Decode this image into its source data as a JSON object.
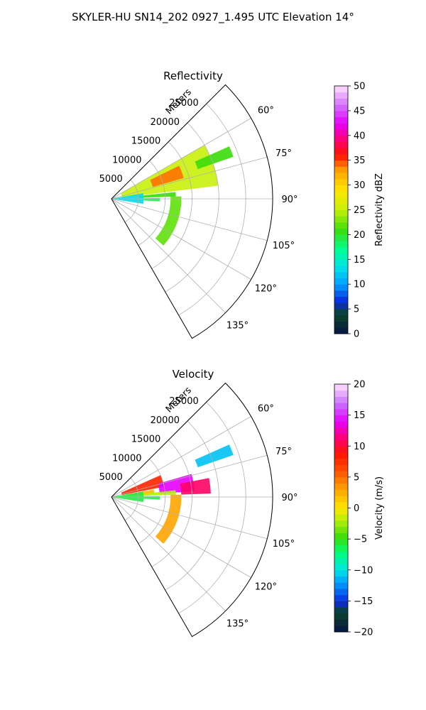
{
  "figure": {
    "title": "SKYLER-HU  SN14_202  0927_1.495 UTC Elevation 14°"
  },
  "chart_data": [
    {
      "type": "heatmap",
      "projection": "polar sector",
      "title": "Reflectivity",
      "radial_label": "Meters",
      "radial_ticks": [
        "5000",
        "10000",
        "15000",
        "20000",
        "25000"
      ],
      "radial_range": [
        0,
        30000
      ],
      "azimuth_range_deg": [
        45,
        150
      ],
      "azimuth_ticks": [
        "60°",
        "75°",
        "90°",
        "105°",
        "120°",
        "135°"
      ],
      "grid": true,
      "colorbar": {
        "label": "Reflectivity dBZ",
        "range": [
          0,
          50
        ],
        "ticks": [
          "0",
          "5",
          "10",
          "15",
          "20",
          "25",
          "30",
          "35",
          "40",
          "45",
          "50"
        ]
      },
      "echo_regions": [
        {
          "az": [
            60,
            83
          ],
          "r": [
            2000,
            20000
          ],
          "value": 25
        },
        {
          "az": [
            64,
            74
          ],
          "r": [
            8000,
            14000
          ],
          "value": 34
        },
        {
          "az": [
            66,
            71
          ],
          "r": [
            17000,
            24000
          ],
          "value": 21
        },
        {
          "az": [
            84,
            88
          ],
          "r": [
            5000,
            12000
          ],
          "value": 21
        },
        {
          "az": [
            80,
            99
          ],
          "r": [
            0,
            6000
          ],
          "value": 13
        },
        {
          "az": [
            88,
            132
          ],
          "r": [
            11000,
            13000
          ],
          "value": 22
        },
        {
          "az": [
            89,
            93
          ],
          "r": [
            6000,
            9000
          ],
          "value": 19
        }
      ]
    },
    {
      "type": "heatmap",
      "projection": "polar sector",
      "title": "Velocity",
      "radial_label": "Meters",
      "radial_ticks": [
        "5000",
        "10000",
        "15000",
        "20000",
        "25000"
      ],
      "radial_range": [
        0,
        30000
      ],
      "azimuth_range_deg": [
        45,
        150
      ],
      "azimuth_ticks": [
        "60°",
        "75°",
        "90°",
        "105°",
        "120°",
        "135°"
      ],
      "grid": true,
      "colorbar": {
        "label": "Velocity (m/s)",
        "range": [
          -20,
          20
        ],
        "ticks": [
          "−20",
          "−15",
          "−10",
          "−5",
          "0",
          "5",
          "10",
          "15",
          "20"
        ]
      },
      "echo_regions": [
        {
          "az": [
            66,
            79
          ],
          "r": [
            2000,
            10000
          ],
          "value": 8
        },
        {
          "az": [
            74,
            86
          ],
          "r": [
            9000,
            15500
          ],
          "value": 14
        },
        {
          "az": [
            79,
            88
          ],
          "r": [
            13000,
            18500
          ],
          "value": 11
        },
        {
          "az": [
            80,
            86
          ],
          "r": [
            3000,
            8000
          ],
          "value": 2
        },
        {
          "az": [
            84,
            88
          ],
          "r": [
            5000,
            12000
          ],
          "value": -2
        },
        {
          "az": [
            66,
            71
          ],
          "r": [
            17000,
            24000
          ],
          "value": -11
        },
        {
          "az": [
            80,
            99
          ],
          "r": [
            0,
            6000
          ],
          "value": -6
        },
        {
          "az": [
            88,
            132
          ],
          "r": [
            11000,
            13000
          ],
          "value": 3
        },
        {
          "az": [
            89,
            93
          ],
          "r": [
            6000,
            9000
          ],
          "value": -6
        }
      ]
    }
  ]
}
